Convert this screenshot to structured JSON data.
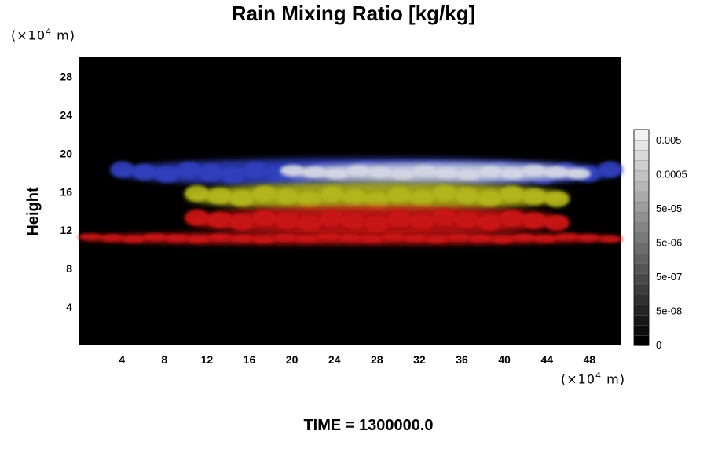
{
  "chart_data": {
    "type": "heatmap",
    "title": "Rain Mixing Ratio [kg/kg]",
    "ylabel": "Height",
    "y_unit": "(×10",
    "x_unit": "(×10",
    "unit_exponent": "4",
    "unit_suffix": " m)",
    "xlim": [
      0,
      51
    ],
    "ylim": [
      0,
      30
    ],
    "x_ticks": [
      "4",
      "8",
      "12",
      "16",
      "20",
      "24",
      "28",
      "32",
      "36",
      "40",
      "44",
      "48"
    ],
    "y_ticks": [
      "4",
      "8",
      "12",
      "16",
      "20",
      "24",
      "28"
    ],
    "colorbar_labels": [
      "0.005",
      "0.0005",
      "5e-05",
      "5e-06",
      "5e-07",
      "5e-08",
      "0"
    ],
    "bands": [
      {
        "color": "#3340c0",
        "y_range": [
          16.5,
          19.5
        ],
        "x_range": [
          3,
          51
        ]
      },
      {
        "color": "#d4d8e4",
        "y_range": [
          17,
          19
        ],
        "x_range": [
          19,
          48
        ]
      },
      {
        "color": "#b5b81a",
        "y_range": [
          14,
          17
        ],
        "x_range": [
          10,
          46
        ]
      },
      {
        "color": "#cc1414",
        "y_range": [
          11.5,
          14.5
        ],
        "x_range": [
          10,
          46
        ]
      },
      {
        "color": "#cc1414",
        "y_range": [
          10.5,
          11.8
        ],
        "x_range": [
          0,
          51
        ]
      }
    ],
    "background": "#000000"
  },
  "footer": "TIME = 1300000.0"
}
